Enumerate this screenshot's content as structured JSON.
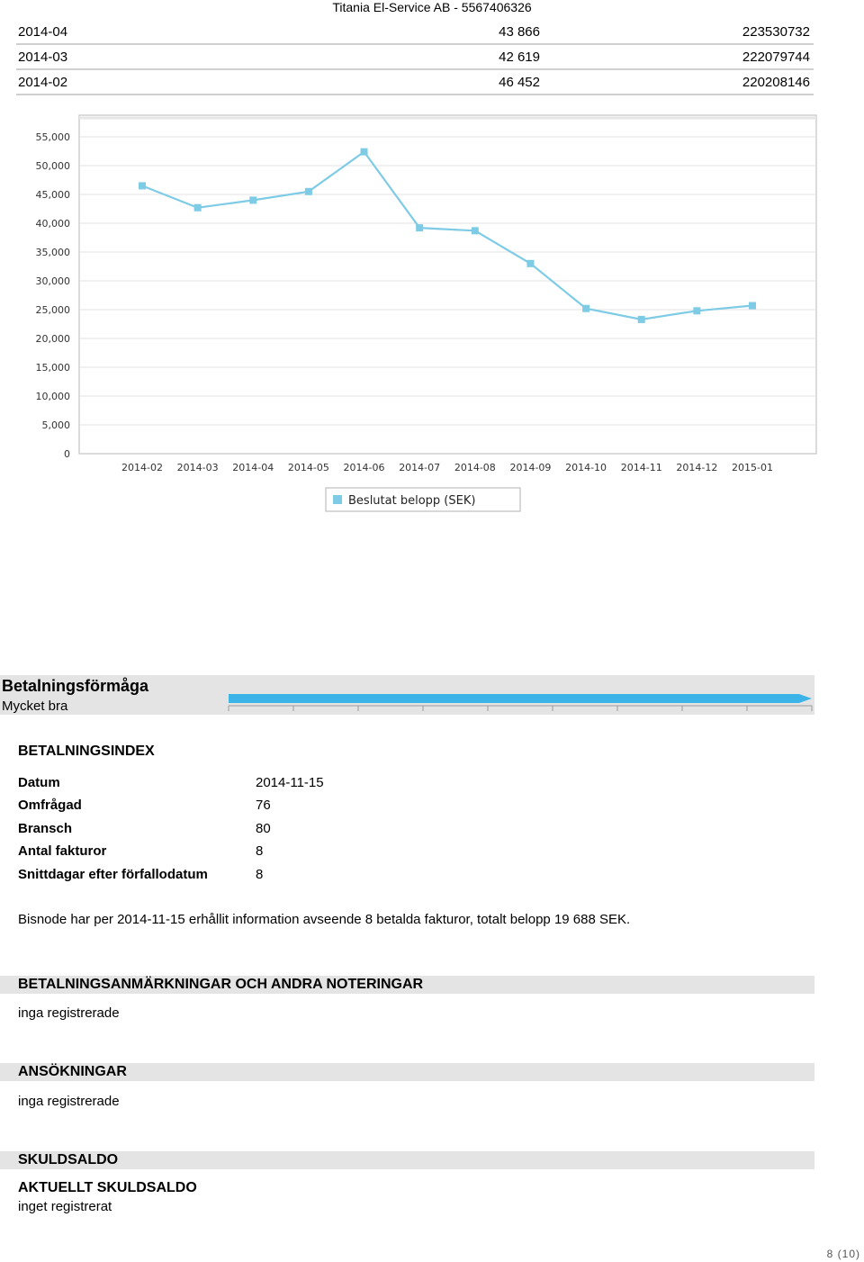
{
  "header": {
    "title": "Titania El-Service AB - 5567406326"
  },
  "top_table": [
    {
      "period": "2014-04",
      "amount": "43 866",
      "ref": "223530732"
    },
    {
      "period": "2014-03",
      "amount": "42 619",
      "ref": "222079744"
    },
    {
      "period": "2014-02",
      "amount": "46 452",
      "ref": "220208146"
    }
  ],
  "chart_data": {
    "type": "line",
    "categories": [
      "2014-02",
      "2014-03",
      "2014-04",
      "2014-05",
      "2014-06",
      "2014-07",
      "2014-08",
      "2014-09",
      "2014-10",
      "2014-11",
      "2014-12",
      "2015-01"
    ],
    "series": [
      {
        "name": "Beslutat belopp (SEK)",
        "values": [
          46500,
          42700,
          44000,
          45500,
          52400,
          39200,
          38700,
          33000,
          25200,
          23300,
          24800,
          25700
        ]
      }
    ],
    "yticks": [
      "0",
      "5,000",
      "10,000",
      "15,000",
      "20,000",
      "25,000",
      "30,000",
      "35,000",
      "40,000",
      "45,000",
      "50,000",
      "55,000"
    ],
    "ylim": [
      0,
      55000
    ],
    "grid": true,
    "legend": "bottom-center",
    "color": "#7ecbe6"
  },
  "payment": {
    "title": "Betalningsförmåga",
    "rating": "Mycket bra",
    "level": 1.0,
    "bar_color": "#3cb4e8"
  },
  "index": {
    "heading": "BETALNINGSINDEX",
    "rows": [
      {
        "label": "Datum",
        "value": "2014-11-15"
      },
      {
        "label": "Omfrågad",
        "value": "76"
      },
      {
        "label": "Bransch",
        "value": "80"
      },
      {
        "label": "Antal fakturor",
        "value": "8"
      },
      {
        "label": "Snittdagar efter förfallodatum",
        "value": "8"
      }
    ],
    "note": "Bisnode har per 2014-11-15 erhållit information avseende 8 betalda fakturor, totalt belopp 19 688 SEK."
  },
  "remarks": {
    "heading": "BETALNINGSANMÄRKNINGAR OCH ANDRA NOTERINGAR",
    "text": "inga registrerade"
  },
  "applications": {
    "heading": "ANSÖKNINGAR",
    "text": "inga registrerade"
  },
  "debt": {
    "heading": "SKULDSALDO",
    "subheading": "AKTUELLT SKULDSALDO",
    "text": "inget registrerat"
  },
  "footer": {
    "page": "8 (10)"
  }
}
